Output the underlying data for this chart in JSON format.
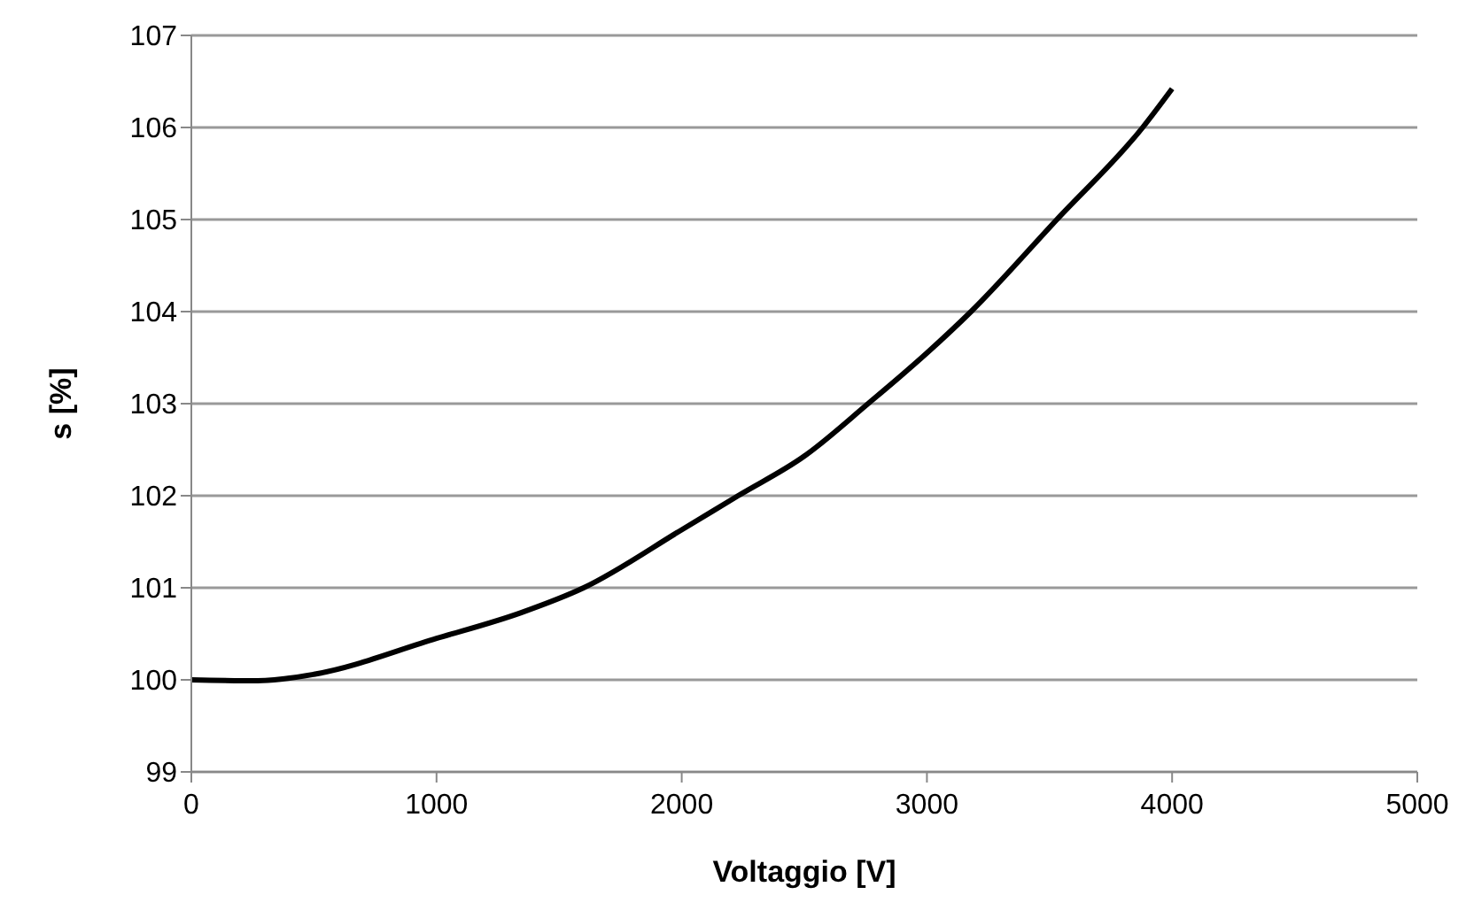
{
  "chart_data": {
    "type": "line",
    "xlabel": "Voltaggio [V]",
    "ylabel": "s [%]",
    "x": [
      0,
      270,
      500,
      1000,
      1345,
      1600,
      2000,
      2230,
      2500,
      2760,
      3000,
      3180,
      3530,
      3880,
      4000
    ],
    "series": [
      {
        "color": "#000000",
        "values": [
          100,
          99.99,
          100.06,
          100.45,
          100.73,
          101,
          101.63,
          102,
          102.43,
          103,
          103.55,
          104,
          105,
          106,
          106.42
        ]
      }
    ],
    "xlim": [
      0,
      5000
    ],
    "xticks": [
      0,
      1000,
      2000,
      3000,
      4000,
      5000
    ],
    "ylim": [
      99,
      107
    ],
    "yticks": [
      99,
      100,
      101,
      102,
      103,
      104,
      105,
      106,
      107
    ],
    "grid": "y",
    "legend": false,
    "marker": "none",
    "line_style": "solid"
  }
}
